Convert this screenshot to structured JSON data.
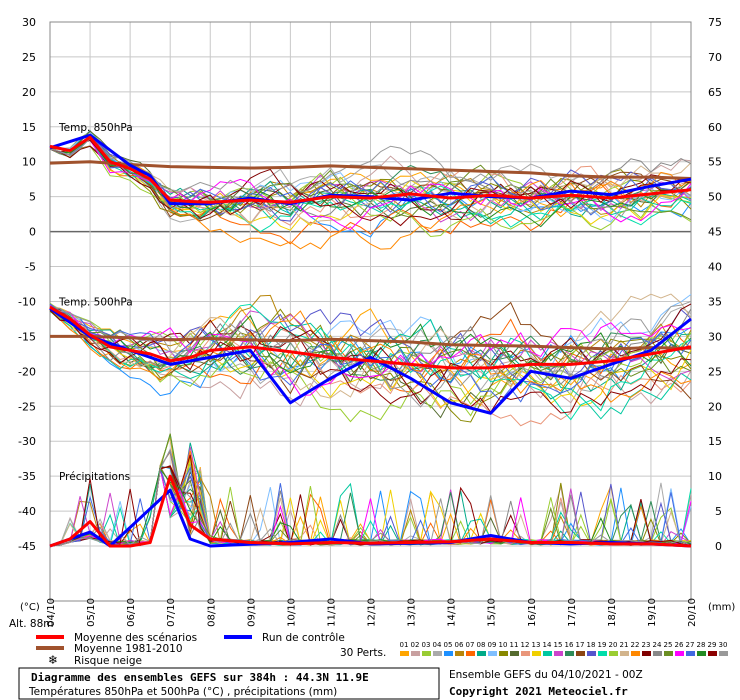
{
  "chart_data": {
    "type": "line",
    "left_unit": "(°C)",
    "right_unit": "(mm)",
    "altitude": "Alt. 88m",
    "left_ticks": [
      30,
      25,
      20,
      15,
      10,
      5,
      0,
      -5,
      -10,
      -15,
      -20,
      -25,
      -30,
      -35,
      -40,
      -45
    ],
    "right_ticks": [
      75,
      70,
      65,
      60,
      55,
      50,
      45,
      40,
      35,
      30,
      25,
      20,
      15,
      10,
      5,
      0
    ],
    "x_labels": [
      "04/10",
      "05/10",
      "06/10",
      "07/10",
      "08/10",
      "09/10",
      "10/10",
      "11/10",
      "12/10",
      "13/10",
      "14/10",
      "15/10",
      "16/10",
      "17/10",
      "18/10",
      "19/10",
      "20/10"
    ],
    "ylim_left": [
      -45,
      30
    ],
    "ylim_right": [
      0,
      75
    ],
    "sections": [
      {
        "label": "Temp. 850hPa",
        "y": 15
      },
      {
        "label": "Temp. 500hPa",
        "y": -10
      },
      {
        "label": "Précipitations",
        "y": -35
      }
    ],
    "series": [
      {
        "name": "Moyenne des scénarios",
        "color": "#ff0000",
        "role": "mean",
        "t850": [
          [
            0,
            12.2
          ],
          [
            0.5,
            11.6
          ],
          [
            1,
            13.5
          ],
          [
            1.5,
            10
          ],
          [
            2,
            9
          ],
          [
            2.5,
            7.5
          ],
          [
            3,
            4.5
          ],
          [
            3.5,
            4.3
          ],
          [
            4,
            4.2
          ],
          [
            5,
            4.5
          ],
          [
            6,
            4.2
          ],
          [
            7,
            5
          ],
          [
            8,
            4.8
          ],
          [
            9,
            5.4
          ],
          [
            10,
            4.8
          ],
          [
            11,
            5.2
          ],
          [
            12,
            4.8
          ],
          [
            13,
            5.2
          ],
          [
            14,
            4.8
          ],
          [
            15,
            5.4
          ],
          [
            16,
            6.0
          ]
        ],
        "t500": [
          [
            0,
            -10.8
          ],
          [
            0.5,
            -12.5
          ],
          [
            1,
            -14.8
          ],
          [
            1.5,
            -16.5
          ],
          [
            2,
            -17
          ],
          [
            2.5,
            -17.5
          ],
          [
            3,
            -18.5
          ],
          [
            3.5,
            -18
          ],
          [
            4,
            -17
          ],
          [
            5,
            -16.5
          ],
          [
            6,
            -17.2
          ],
          [
            7,
            -18
          ],
          [
            8,
            -18.5
          ],
          [
            9,
            -19
          ],
          [
            10,
            -19.5
          ],
          [
            11,
            -19.5
          ],
          [
            12,
            -19
          ],
          [
            13,
            -19
          ],
          [
            14,
            -18.5
          ],
          [
            15,
            -17.5
          ],
          [
            16,
            -16.5
          ]
        ],
        "precip": [
          [
            0,
            0
          ],
          [
            0.5,
            1
          ],
          [
            1,
            3.5
          ],
          [
            1.5,
            0
          ],
          [
            2,
            0
          ],
          [
            2.5,
            0.5
          ],
          [
            3,
            10
          ],
          [
            3.5,
            3
          ],
          [
            4,
            1
          ],
          [
            5,
            0.5
          ],
          [
            6,
            0.3
          ],
          [
            7,
            0.5
          ],
          [
            8,
            0.4
          ],
          [
            9,
            0.5
          ],
          [
            10,
            0.6
          ],
          [
            11,
            1
          ],
          [
            12,
            0.5
          ],
          [
            13,
            0.5
          ],
          [
            14,
            0.3
          ],
          [
            15,
            0.3
          ],
          [
            16,
            0
          ]
        ]
      },
      {
        "name": "Moyenne 1981-2010",
        "color": "#a0522d",
        "role": "climo",
        "t850": [
          [
            0,
            9.8
          ],
          [
            1,
            10
          ],
          [
            2,
            9.6
          ],
          [
            3,
            9.3
          ],
          [
            4,
            9.2
          ],
          [
            5,
            9.1
          ],
          [
            6,
            9.2
          ],
          [
            7,
            9.4
          ],
          [
            8,
            9.2
          ],
          [
            9,
            9.0
          ],
          [
            10,
            8.8
          ],
          [
            11,
            8.6
          ],
          [
            12,
            8.4
          ],
          [
            13,
            8.0
          ],
          [
            14,
            7.8
          ],
          [
            15,
            7.8
          ],
          [
            16,
            7.6
          ]
        ],
        "t500": [
          [
            0,
            -15
          ],
          [
            1,
            -15
          ],
          [
            2,
            -15.2
          ],
          [
            3,
            -15.5
          ],
          [
            4,
            -15.3
          ],
          [
            5,
            -15.5
          ],
          [
            6,
            -15.6
          ],
          [
            7,
            -15.4
          ],
          [
            8,
            -15.6
          ],
          [
            9,
            -15.8
          ],
          [
            10,
            -16.2
          ],
          [
            11,
            -16.3
          ],
          [
            12,
            -16.4
          ],
          [
            13,
            -16.6
          ],
          [
            14,
            -16.8
          ],
          [
            15,
            -16.6
          ],
          [
            16,
            -16.7
          ]
        ],
        "precip": []
      },
      {
        "name": "Run de contrôle",
        "color": "#0000ff",
        "role": "control",
        "t850": [
          [
            0,
            12
          ],
          [
            1,
            13.8
          ],
          [
            2,
            9.5
          ],
          [
            2.5,
            8
          ],
          [
            3,
            4
          ],
          [
            4,
            4
          ],
          [
            5,
            4.8
          ],
          [
            6,
            4
          ],
          [
            7,
            5.2
          ],
          [
            8,
            5
          ],
          [
            9,
            4.5
          ],
          [
            10,
            5.5
          ],
          [
            11,
            5
          ],
          [
            12,
            4.8
          ],
          [
            13,
            5.8
          ],
          [
            14,
            5.3
          ],
          [
            15,
            6.5
          ],
          [
            16,
            7.5
          ]
        ],
        "t500": [
          [
            0,
            -11
          ],
          [
            1,
            -15
          ],
          [
            2,
            -17
          ],
          [
            3,
            -19
          ],
          [
            4,
            -18
          ],
          [
            5,
            -17
          ],
          [
            6,
            -24.5
          ],
          [
            7,
            -21
          ],
          [
            8,
            -18
          ],
          [
            9,
            -21
          ],
          [
            10,
            -24.5
          ],
          [
            11,
            -26
          ],
          [
            12,
            -20
          ],
          [
            13,
            -21
          ],
          [
            14,
            -19
          ],
          [
            15,
            -17
          ],
          [
            16,
            -12.5
          ]
        ],
        "precip": [
          [
            0,
            0
          ],
          [
            1,
            2
          ],
          [
            1.5,
            0
          ],
          [
            3,
            8
          ],
          [
            3.5,
            1
          ],
          [
            4,
            0
          ],
          [
            6,
            0.5
          ],
          [
            7,
            1
          ],
          [
            8,
            0.3
          ],
          [
            10,
            0.5
          ],
          [
            11,
            1.5
          ],
          [
            12,
            0.5
          ],
          [
            13,
            0.3
          ],
          [
            14,
            0.5
          ],
          [
            15,
            0.3
          ],
          [
            16,
            0
          ]
        ]
      }
    ],
    "legend": [
      {
        "name": "Moyenne des scénarios",
        "color": "#ff0000"
      },
      {
        "name": "Run de contrôle",
        "color": "#0000ff"
      },
      {
        "name": "Moyenne 1981-2010",
        "color": "#a0522d"
      },
      {
        "name": "Risque neige",
        "color": "#3399ff",
        "icon": "snowflake-icon"
      }
    ],
    "perturbations": {
      "label": "30 Perts.",
      "numbers": [
        "01",
        "02",
        "03",
        "04",
        "05",
        "06",
        "07",
        "08",
        "09",
        "10",
        "11",
        "12",
        "13",
        "14",
        "15",
        "16",
        "17",
        "18",
        "19",
        "20",
        "21",
        "22",
        "23",
        "24",
        "25",
        "26",
        "27",
        "28",
        "29",
        "30"
      ],
      "colors": [
        "#ffa500",
        "#c8a0a0",
        "#99cc33",
        "#aaaaaa",
        "#1e90ff",
        "#b8860b",
        "#ff6600",
        "#00aa88",
        "#7fbfff",
        "#888800",
        "#556b2f",
        "#e9967a",
        "#f0d000",
        "#00c8a0",
        "#cc44cc",
        "#2e8b57",
        "#8b4513",
        "#5555cc",
        "#00ddaa",
        "#9acd32",
        "#d2b48c",
        "#ff8800",
        "#800000",
        "#888888",
        "#6b8e23",
        "#ff00ff",
        "#4169e1",
        "#228b22",
        "#8b0000",
        "#999999"
      ]
    },
    "title_box": {
      "line1": "Diagramme des ensembles GEFS sur 384h : 44.3N 11.9E",
      "line2": "Températures 850hPa et 500hPa (°C) , précipitations (mm)"
    },
    "ensemble_info": "Ensemble GEFS du 04/10/2021 - 00Z",
    "copyright": "Copyright 2021 Meteociel.fr"
  }
}
